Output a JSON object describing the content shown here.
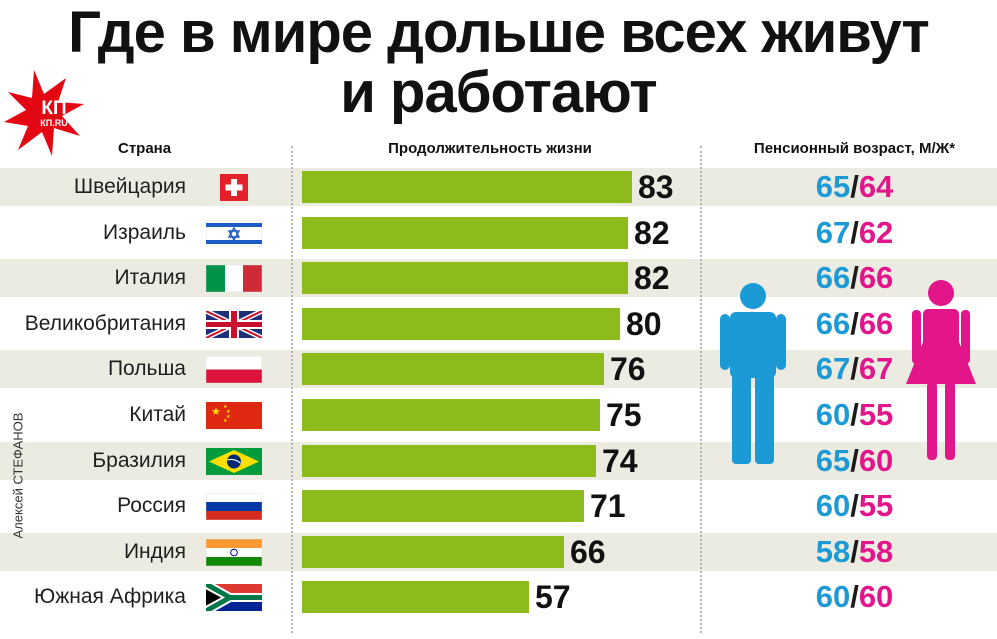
{
  "title": {
    "line1": "Где в мире дольше всех живут",
    "line2": "и работают"
  },
  "logo": {
    "main": "КП",
    "sub": "КП.RU"
  },
  "headers": {
    "country": "Страна",
    "life": "Продолжительность жизни",
    "retirement": "Пенсионный возраст, М/Ж*"
  },
  "author": "Алексей СТЕФАНОВ",
  "colors": {
    "bar": "#8dbb1c",
    "male": "#1b9ad6",
    "female": "#e2168a",
    "shade": "#ecebe2"
  },
  "chart_data": {
    "type": "bar",
    "orientation": "horizontal",
    "categories": [
      "Швейцария",
      "Израиль",
      "Италия",
      "Великобритания",
      "Польша",
      "Китай",
      "Бразилия",
      "Россия",
      "Индия",
      "Южная Африка"
    ],
    "values": [
      83,
      82,
      82,
      80,
      76,
      75,
      74,
      71,
      66,
      57
    ],
    "xlim": [
      0,
      84
    ],
    "ylabel": "",
    "xlabel": "",
    "grid": false,
    "retirement_age": [
      {
        "m": "65",
        "f": "64"
      },
      {
        "m": "67",
        "f": "62"
      },
      {
        "m": "66",
        "f": "66"
      },
      {
        "m": "66",
        "f": "66"
      },
      {
        "m": "67",
        "f": "67"
      },
      {
        "m": "60",
        "f": "55"
      },
      {
        "m": "65",
        "f": "60"
      },
      {
        "m": "60",
        "f": "55"
      },
      {
        "m": "58",
        "f": "58"
      },
      {
        "m": "60",
        "f": "60"
      }
    ],
    "flags": [
      "switzerland-flag",
      "israel-flag",
      "italy-flag",
      "uk-flag",
      "poland-flag",
      "china-flag",
      "brazil-flag",
      "russia-flag",
      "india-flag",
      "south-africa-flag"
    ]
  }
}
